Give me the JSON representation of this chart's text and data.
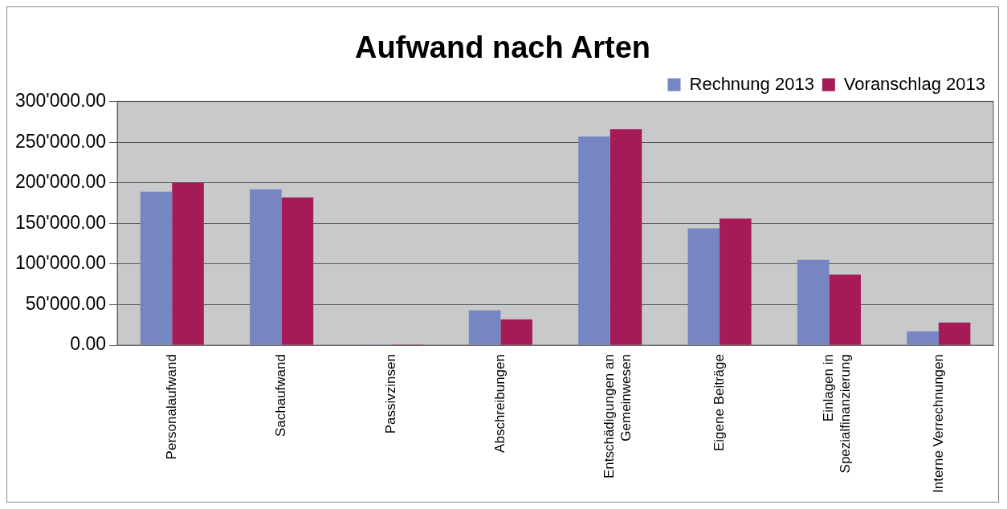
{
  "chart_data": {
    "type": "bar",
    "title": "Aufwand nach Arten",
    "categories": [
      "Personalaufwand",
      "Sachaufwand",
      "Passivzinsen",
      "Abschreibungen",
      "Entschädigungen an Gemeinwesen",
      "Eigene Beiträge",
      "Einlagen in Spezialfinanzierung",
      "Interne Verrechnungen"
    ],
    "series": [
      {
        "name": "Rechnung 2013",
        "color": "#7586c2",
        "values": [
          189000,
          192000,
          1000,
          43000,
          257000,
          144000,
          105000,
          17000
        ]
      },
      {
        "name": "Voranschlag 2013",
        "color": "#a61a58",
        "values": [
          200000,
          182000,
          1000,
          32000,
          266000,
          156000,
          87000,
          28000
        ]
      }
    ],
    "ylim": [
      0,
      300000
    ],
    "yticks": [
      {
        "value": 0,
        "label": "0.00"
      },
      {
        "value": 50000,
        "label": "50'000.00"
      },
      {
        "value": 100000,
        "label": "100'000.00"
      },
      {
        "value": 150000,
        "label": "150'000.00"
      },
      {
        "value": 200000,
        "label": "200'000.00"
      },
      {
        "value": 250000,
        "label": "250'000.00"
      },
      {
        "value": 300000,
        "label": "300'000.00"
      }
    ],
    "grid": "y",
    "legend": "top right"
  }
}
